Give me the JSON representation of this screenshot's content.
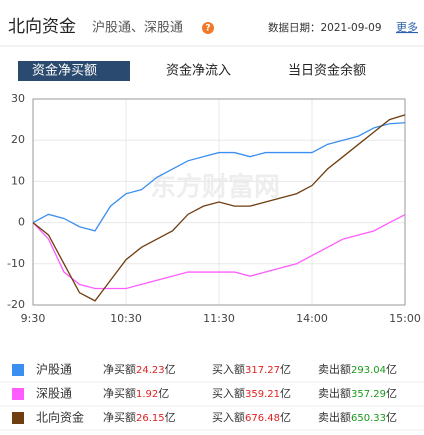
{
  "header": {
    "title": "北向资金",
    "subtitle": "沪股通、深股通",
    "help_icon": "?",
    "date_label": "数据日期：2021-09-09",
    "more": "更多"
  },
  "tabs": [
    {
      "label": "资金净买额",
      "active": true
    },
    {
      "label": "资金净流入",
      "active": false
    },
    {
      "label": "当日资金余额",
      "active": false
    }
  ],
  "chart_data": {
    "type": "line",
    "watermark": "东方财富网",
    "x": [
      0,
      10,
      20,
      30,
      40,
      50,
      60,
      70,
      80,
      90,
      100,
      110,
      120,
      130,
      140,
      150,
      160,
      170,
      180,
      190,
      200,
      210,
      220,
      230,
      240
    ],
    "xlim": [
      0,
      240
    ],
    "xticks": [
      {
        "value": 0,
        "label": "9:30"
      },
      {
        "value": 60,
        "label": "10:30"
      },
      {
        "value": 120,
        "label": "11:30"
      },
      {
        "value": 180,
        "label": "14:00"
      },
      {
        "value": 240,
        "label": "15:00"
      }
    ],
    "ylim": [
      -20,
      30
    ],
    "yticks": [
      -20,
      -10,
      0,
      10,
      20,
      30
    ],
    "grid": true,
    "series": [
      {
        "name": "沪股通",
        "color": "#3b8ff0",
        "values": [
          0,
          2,
          1,
          -1,
          -2,
          4,
          7,
          8,
          11,
          13,
          15,
          16,
          17,
          17,
          16,
          17,
          17,
          17,
          17,
          19,
          20,
          21,
          23,
          24,
          24.23
        ]
      },
      {
        "name": "深股通",
        "color": "#ff5cff",
        "values": [
          0,
          -4,
          -12,
          -15,
          -16,
          -16,
          -16,
          -15,
          -14,
          -13,
          -12,
          -12,
          -12,
          -12,
          -13,
          -12,
          -11,
          -10,
          -8,
          -6,
          -4,
          -3,
          -2,
          0,
          1.92
        ]
      },
      {
        "name": "北向资金",
        "color": "#6e3d10",
        "values": [
          0,
          -3,
          -10,
          -17,
          -19,
          -14,
          -9,
          -6,
          -4,
          -2,
          2,
          4,
          5,
          4,
          4,
          5,
          6,
          7,
          9,
          13,
          16,
          19,
          22,
          25,
          26.15
        ]
      }
    ]
  },
  "summary": {
    "labels": {
      "net": "净买额",
      "buy": "买入额",
      "sell": "卖出额",
      "unit": "亿"
    },
    "rows": [
      {
        "net": "24.23",
        "buy": "317.27",
        "sell": "293.04"
      },
      {
        "net": "1.92",
        "buy": "359.21",
        "sell": "357.29"
      },
      {
        "net": "26.15",
        "buy": "676.48",
        "sell": "650.33"
      }
    ]
  }
}
